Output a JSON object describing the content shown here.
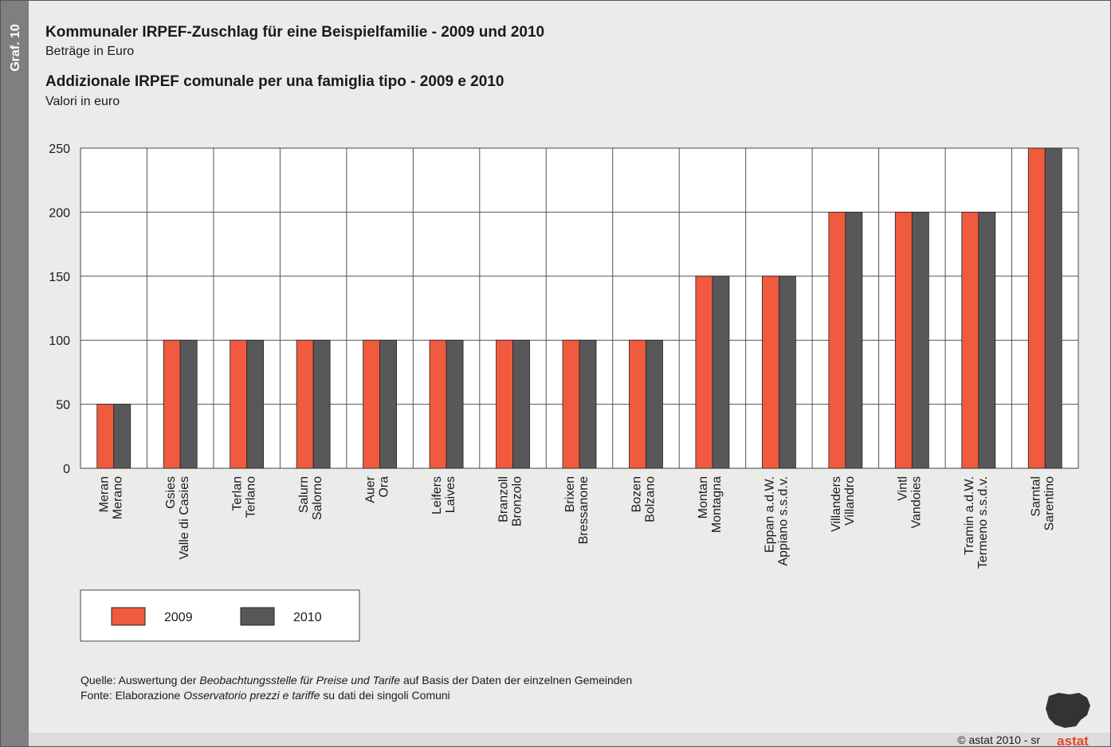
{
  "chart_data": {
    "type": "bar",
    "graph_label": "Graf. 10",
    "title": "Kommunaler IRPEF-Zuschlag für eine Beispielfamilie - 2009 und 2010",
    "subtitle": "Beträge in Euro",
    "title2": "Addizionale IRPEF comunale per una famiglia tipo - 2009 e 2010",
    "subtitle2": "Valori in euro",
    "categories": [
      [
        "Meran",
        "Merano"
      ],
      [
        "Gsies",
        "Valle di Casies"
      ],
      [
        "Terlan",
        "Terlano"
      ],
      [
        "Salurn",
        "Salorno"
      ],
      [
        "Auer",
        "Ora"
      ],
      [
        "Leifers",
        "Laives"
      ],
      [
        "Branzoll",
        "Bronzolo"
      ],
      [
        "Brixen",
        "Bressanone"
      ],
      [
        "Bozen",
        "Bolzano"
      ],
      [
        "Montan",
        "Montagna"
      ],
      [
        "Eppan a.d.W.",
        "Appiano s.s.d.v."
      ],
      [
        "Villanders",
        "Villandro"
      ],
      [
        "Vintl",
        "Vandoies"
      ],
      [
        "Tramin a.d.W.",
        "Termeno s.s.d.v."
      ],
      [
        "Sarntal",
        "Sarentino"
      ]
    ],
    "series": [
      {
        "name": "2009",
        "color": "#f05a3e",
        "values": [
          50,
          100,
          100,
          100,
          100,
          100,
          100,
          100,
          100,
          150,
          150,
          200,
          200,
          200,
          250
        ]
      },
      {
        "name": "2010",
        "color": "#58585a",
        "values": [
          50,
          100,
          100,
          100,
          100,
          100,
          100,
          100,
          100,
          150,
          150,
          200,
          200,
          200,
          250
        ]
      }
    ],
    "ylim": [
      0,
      250
    ],
    "yticks": [
      0,
      50,
      100,
      150,
      200,
      250
    ],
    "grid": true,
    "source": [
      [
        "Quelle: Auswertung der ",
        "Beobachtungsstelle für Preise und Tarife",
        " auf Basis der Daten der einzelnen Gemeinden"
      ],
      [
        "Fonte: Elaborazione ",
        "Osservatorio prezzi e tariffe",
        " su dati dei singoli Comuni"
      ]
    ],
    "copyright": "© astat 2010 - sr",
    "logo": "astat"
  }
}
